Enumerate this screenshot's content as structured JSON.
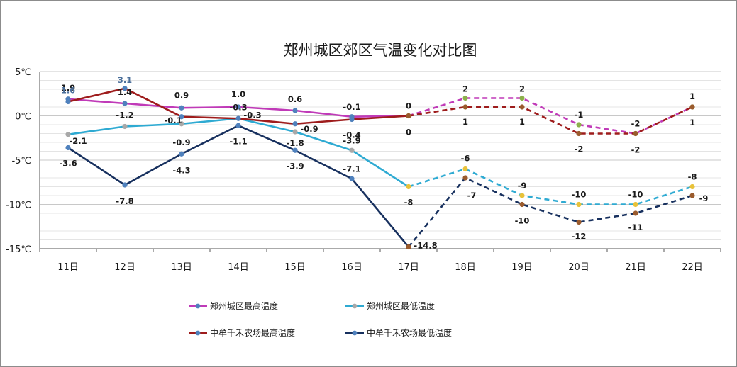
{
  "chart_data": {
    "type": "line",
    "title": "郑州城区郊区气温变化对比图",
    "categories": [
      "11日",
      "12日",
      "13日",
      "14日",
      "15日",
      "16日",
      "17日",
      "18日",
      "19日",
      "20日",
      "21日",
      "22日"
    ],
    "y_ticks": [
      "5℃",
      "0℃",
      "-5℃",
      "-10℃",
      "-15℃"
    ],
    "ylim": [
      -15,
      5
    ],
    "ytick_step": 5,
    "grid": true,
    "legend_position": "bottom",
    "observed_count": 7,
    "series": [
      {
        "name": "郑州城区最高温度",
        "color": "#c03ab8",
        "values": [
          1.9,
          1.4,
          0.9,
          1.0,
          0.6,
          -0.1,
          0,
          2,
          2,
          -1,
          -2,
          1
        ],
        "labels": [
          "1.9",
          "1.4",
          "0.9",
          "1.0",
          "0.6",
          "-0.1",
          "0",
          "2",
          "2",
          "-1",
          "-2",
          "1"
        ]
      },
      {
        "name": "郑州城区最低温度",
        "color": "#2eaad2",
        "values": [
          -2.1,
          -1.2,
          -0.9,
          -0.3,
          -1.8,
          -3.9,
          -8,
          -6,
          -9,
          -10,
          -10,
          -8
        ],
        "labels": [
          "-2.1",
          "-1.2",
          "-0.9",
          "-0.3",
          "-1.8",
          "-3.9",
          "-8",
          "-6",
          "-9",
          "-10",
          "-10",
          "-8"
        ]
      },
      {
        "name": "中牟千禾农场最高温度",
        "color": "#9e1c1c",
        "values": [
          1.6,
          3.1,
          -0.1,
          -0.3,
          -0.9,
          -0.4,
          0,
          1,
          1,
          -2,
          -2,
          1
        ],
        "labels": [
          "1.6",
          "3.1",
          "-0.1",
          "-0.3",
          "-0.9",
          "-0.4",
          "0",
          "1",
          "1",
          "-2",
          "-2",
          "1"
        ]
      },
      {
        "name": "中牟千禾农场最低温度",
        "color": "#17305e",
        "values": [
          -3.6,
          -7.8,
          -4.3,
          -1.1,
          -3.9,
          -7.1,
          -14.8,
          -7,
          -10,
          -12,
          -11,
          -9
        ],
        "labels": [
          "-3.6",
          "-7.8",
          "-4.3",
          "-1.1",
          "-3.9",
          "-7.1",
          "-14.8",
          "-7",
          "-10",
          "-12",
          "-11",
          "-9"
        ]
      }
    ]
  }
}
